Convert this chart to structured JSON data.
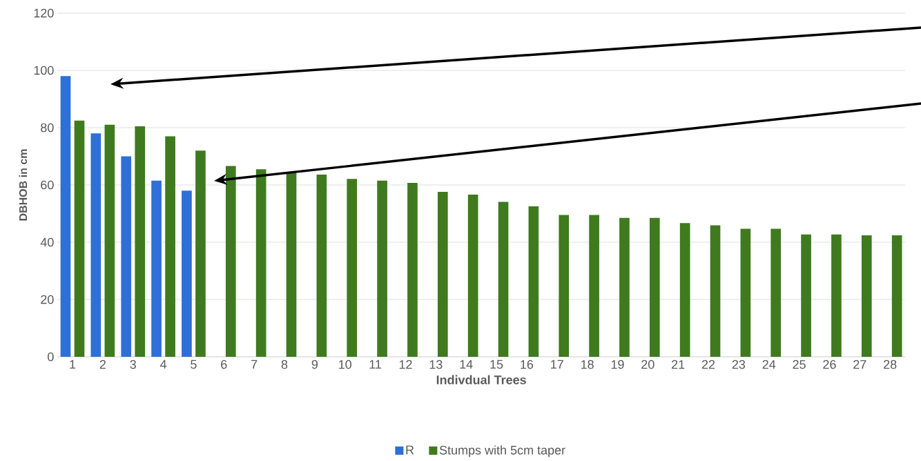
{
  "chart_data": {
    "type": "bar",
    "xlabel": "Indivdual Trees",
    "ylabel": "DBHOB in cm",
    "categories": [
      "1",
      "2",
      "3",
      "4",
      "5",
      "6",
      "7",
      "8",
      "9",
      "10",
      "11",
      "12",
      "13",
      "14",
      "15",
      "16",
      "17",
      "18",
      "19",
      "20",
      "21",
      "22",
      "23",
      "24",
      "25",
      "26",
      "27",
      "28"
    ],
    "series": [
      {
        "name": "R",
        "color": "#2e6fd8",
        "values": [
          98,
          78,
          70,
          61.5,
          58,
          null,
          null,
          null,
          null,
          null,
          null,
          null,
          null,
          null,
          null,
          null,
          null,
          null,
          null,
          null,
          null,
          null,
          null,
          null,
          null,
          null,
          null,
          null
        ]
      },
      {
        "name": "Stumps with 5cm taper",
        "color": "#3f7a1f",
        "values": [
          82.5,
          81,
          80.5,
          77,
          72,
          66.6,
          65.5,
          64.3,
          63.6,
          62.1,
          61.5,
          60.7,
          57.6,
          56.6,
          54.1,
          52.5,
          49.5,
          49.5,
          48.5,
          48.5,
          46.7,
          45.9,
          44.7,
          44.7,
          42.7,
          42.7,
          42.4,
          42.4
        ]
      }
    ],
    "ylim": [
      0,
      120
    ],
    "yticks": [
      0,
      20,
      40,
      60,
      80,
      100,
      120
    ],
    "grid": "y",
    "legend": "bottom"
  }
}
